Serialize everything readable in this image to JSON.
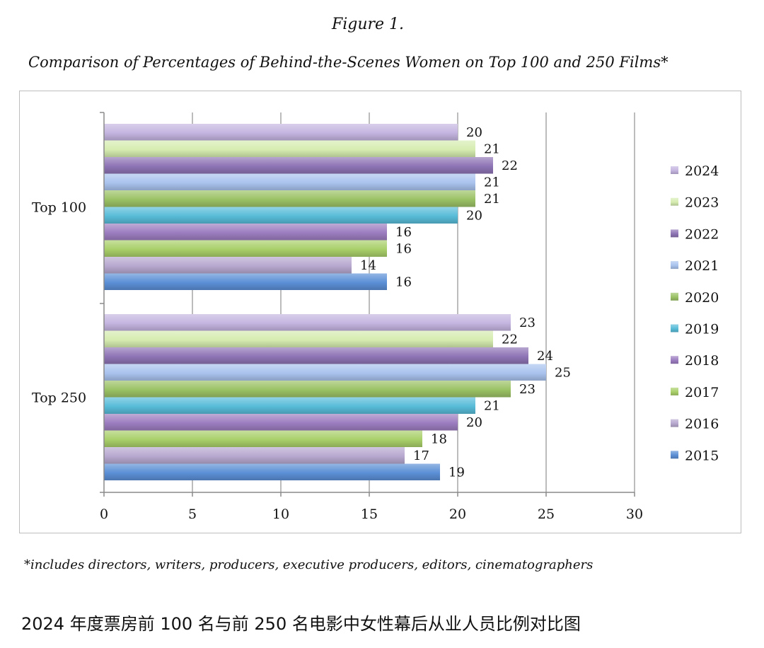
{
  "figure_label": "Figure 1.",
  "figure_title": "Comparison of Percentages of Behind-the-Scenes Women on Top 100 and 250 Films*",
  "footnote": "*includes directors, writers, producers, executive producers, editors, cinematographers",
  "caption": "2024 年度票房前 100 名与前 250 名电影中女性幕后从业人员比例对比图",
  "chart_data": {
    "type": "bar",
    "orientation": "horizontal",
    "categories": [
      "Top 100",
      "Top 250"
    ],
    "series": [
      {
        "name": "2024",
        "color": "#c4b5e0",
        "values": [
          20,
          23
        ]
      },
      {
        "name": "2023",
        "color": "#d6ecb0",
        "values": [
          21,
          22
        ]
      },
      {
        "name": "2022",
        "color": "#8e74b5",
        "values": [
          22,
          24
        ]
      },
      {
        "name": "2021",
        "color": "#a9c3ee",
        "values": [
          21,
          25
        ]
      },
      {
        "name": "2020",
        "color": "#9bc265",
        "values": [
          21,
          23
        ]
      },
      {
        "name": "2019",
        "color": "#58bcd8",
        "values": [
          20,
          21
        ]
      },
      {
        "name": "2018",
        "color": "#9c7dc0",
        "values": [
          16,
          20
        ]
      },
      {
        "name": "2017",
        "color": "#a9cf6a",
        "values": [
          16,
          18
        ]
      },
      {
        "name": "2016",
        "color": "#b7a8cf",
        "values": [
          14,
          17
        ]
      },
      {
        "name": "2015",
        "color": "#5b8fd6",
        "values": [
          16,
          19
        ]
      }
    ],
    "xlim": [
      0,
      30
    ],
    "xticks": [
      0,
      5,
      10,
      15,
      20,
      25,
      30
    ],
    "grid": true,
    "legend": "right"
  }
}
